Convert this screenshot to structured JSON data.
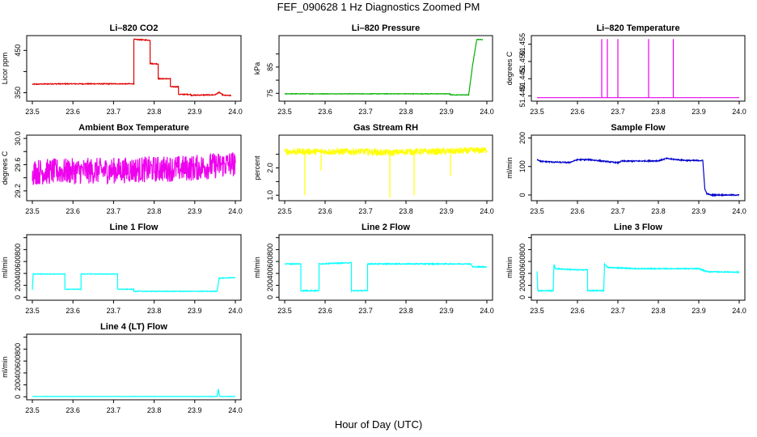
{
  "title": "FEF_090628  1 Hz Diagnostics Zoomed PM",
  "xlabel": "Hour of Day (UTC)",
  "colors": {
    "red": "#e00000",
    "green": "#00b000",
    "magenta": "#ee00ee",
    "yellow": "#ffff00",
    "blue": "#0000cc",
    "cyan": "#00ffff"
  },
  "chart_data": [
    {
      "type": "line",
      "title": "Li–820 CO2",
      "ylabel": "Licor ppm",
      "color": "red",
      "xlim": [
        23.5,
        24.0
      ],
      "ylim": [
        330,
        485
      ],
      "xticks": [
        23.5,
        23.6,
        23.7,
        23.8,
        23.9,
        24.0
      ],
      "yticks": [
        350,
        400,
        450
      ],
      "ytick_labels": [
        "350",
        "",
        "450"
      ],
      "series": [
        {
          "x": [
            23.5,
            23.55,
            23.6,
            23.65,
            23.7,
            23.75,
            23.75,
            23.79,
            23.79,
            23.81,
            23.81,
            23.84,
            23.84,
            23.86,
            23.86,
            23.89,
            23.89,
            23.95,
            23.96,
            23.97,
            23.99
          ],
          "y": [
            370,
            371,
            371,
            371,
            371,
            371,
            476,
            474,
            419,
            418,
            383,
            383,
            364,
            364,
            346,
            346,
            344,
            345,
            351,
            344,
            343
          ],
          "noise": 1
        }
      ]
    },
    {
      "type": "line",
      "title": "Li–820 Pressure",
      "ylabel": "kPa",
      "color": "green",
      "xlim": [
        23.5,
        24.0
      ],
      "ylim": [
        72,
        97
      ],
      "xticks": [
        23.5,
        23.6,
        23.7,
        23.8,
        23.9,
        24.0
      ],
      "yticks": [
        75,
        80,
        85,
        90
      ],
      "ytick_labels": [
        "75",
        "",
        "85",
        ""
      ],
      "series": [
        {
          "x": [
            23.5,
            23.7,
            23.91,
            23.91,
            23.955,
            23.965,
            23.975,
            23.99
          ],
          "y": [
            74.8,
            74.8,
            74.8,
            74.4,
            74.4,
            86,
            95.5,
            95.5
          ],
          "noise": 0.1
        }
      ]
    },
    {
      "type": "line",
      "title": "Li–820 Temperature",
      "ylabel": "degrees C",
      "color": "magenta",
      "xlim": [
        23.5,
        24.0
      ],
      "ylim": [
        51.4385,
        51.4575
      ],
      "xticks": [
        23.5,
        23.6,
        23.7,
        23.8,
        23.9,
        24.0
      ],
      "yticks": [
        51.44,
        51.445,
        51.45,
        51.455
      ],
      "ytick_labels": [
        "51.440",
        "51.445",
        "51.450",
        "51.455"
      ],
      "series": [
        {
          "x": [
            23.5,
            23.66,
            23.66,
            23.66,
            23.674,
            23.674,
            23.674,
            23.7,
            23.7,
            23.7,
            23.776,
            23.776,
            23.776,
            23.837,
            23.837,
            23.837,
            24.0
          ],
          "y": [
            51.4395,
            51.4395,
            51.4565,
            51.4395,
            51.4395,
            51.4565,
            51.4395,
            51.4395,
            51.4565,
            51.4395,
            51.4395,
            51.4565,
            51.4395,
            51.4395,
            51.4565,
            51.4395,
            51.4395
          ],
          "noise": 0
        }
      ]
    },
    {
      "type": "line",
      "title": "Ambient Box Temperature",
      "ylabel": "degrees C",
      "color": "magenta",
      "xlim": [
        23.5,
        24.0
      ],
      "ylim": [
        29.05,
        30.05
      ],
      "xticks": [
        23.5,
        23.6,
        23.7,
        23.8,
        23.9,
        24.0
      ],
      "yticks": [
        29.2,
        29.4,
        29.6,
        29.8,
        30.0
      ],
      "ytick_labels": [
        "29.2",
        "",
        "29.6",
        "",
        "30.0"
      ],
      "series": [
        {
          "x": [
            23.5,
            23.6,
            23.7,
            23.8,
            23.9,
            24.0
          ],
          "y": [
            29.49,
            29.5,
            29.51,
            29.53,
            29.55,
            29.62
          ],
          "noise": 0.2
        }
      ]
    },
    {
      "type": "line",
      "title": "Gas Stream RH",
      "ylabel": "percent",
      "color": "yellow",
      "xlim": [
        23.5,
        24.0
      ],
      "ylim": [
        0.8,
        3.2
      ],
      "xticks": [
        23.5,
        23.6,
        23.7,
        23.8,
        23.9,
        24.0
      ],
      "yticks": [
        1.0,
        1.5,
        2.0,
        2.5
      ],
      "ytick_labels": [
        "1.0",
        "",
        "2.0",
        ""
      ],
      "series": [
        {
          "x": [
            23.5,
            23.55,
            23.6,
            23.7,
            23.76,
            23.8,
            23.9,
            24.0
          ],
          "y": [
            2.6,
            2.6,
            2.6,
            2.6,
            2.55,
            2.6,
            2.6,
            2.65
          ],
          "noise": 0.12
        }
      ]
    },
    {
      "type": "line",
      "title": "Sample Flow",
      "ylabel": "ml/min",
      "color": "blue",
      "xlim": [
        23.5,
        24.0
      ],
      "ylim": [
        -20,
        210
      ],
      "xticks": [
        23.5,
        23.6,
        23.7,
        23.8,
        23.9,
        24.0
      ],
      "yticks": [
        0,
        100,
        200
      ],
      "ytick_labels": [
        "0",
        "100",
        "200"
      ],
      "series": [
        {
          "x": [
            23.5,
            23.51,
            23.55,
            23.58,
            23.6,
            23.63,
            23.7,
            23.71,
            23.75,
            23.8,
            23.82,
            23.84,
            23.87,
            23.91,
            23.915,
            23.92,
            23.93,
            24.0
          ],
          "y": [
            125,
            118,
            115,
            114,
            124,
            124,
            113,
            119,
            119,
            120,
            128,
            125,
            121,
            121,
            20,
            5,
            0,
            0
          ],
          "noise": 2
        }
      ]
    },
    {
      "type": "line",
      "title": "Line 1 Flow",
      "ylabel": "ml/min",
      "color": "cyan",
      "xlim": [
        23.5,
        24.0
      ],
      "ylim": [
        -50,
        1050
      ],
      "xticks": [
        23.5,
        23.6,
        23.7,
        23.8,
        23.9,
        24.0
      ],
      "yticks": [
        0,
        200,
        400,
        600,
        800,
        1000
      ],
      "ytick_labels": [
        "0",
        "200",
        "400",
        "600",
        "800",
        ""
      ],
      "series": [
        {
          "x": [
            23.5,
            23.502,
            23.58,
            23.58,
            23.62,
            23.62,
            23.71,
            23.71,
            23.75,
            23.75,
            23.955,
            23.96,
            24.0
          ],
          "y": [
            120,
            390,
            390,
            135,
            135,
            390,
            390,
            135,
            135,
            100,
            100,
            320,
            330
          ],
          "noise": 5
        }
      ]
    },
    {
      "type": "line",
      "title": "Line 2 Flow",
      "ylabel": "ml/min",
      "color": "cyan",
      "xlim": [
        23.5,
        24.0
      ],
      "ylim": [
        -50,
        1050
      ],
      "xticks": [
        23.5,
        23.6,
        23.7,
        23.8,
        23.9,
        24.0
      ],
      "yticks": [
        0,
        200,
        400,
        600,
        800,
        1000
      ],
      "ytick_labels": [
        "0",
        "200",
        "400",
        "600",
        "800",
        ""
      ],
      "series": [
        {
          "x": [
            23.5,
            23.54,
            23.54,
            23.585,
            23.585,
            23.665,
            23.665,
            23.705,
            23.705,
            23.96,
            23.965,
            24.0
          ],
          "y": [
            560,
            560,
            110,
            110,
            560,
            580,
            110,
            110,
            560,
            560,
            510,
            510
          ],
          "noise": 8
        }
      ]
    },
    {
      "type": "line",
      "title": "Line 3 Flow",
      "ylabel": "ml/min",
      "color": "cyan",
      "xlim": [
        23.5,
        24.0
      ],
      "ylim": [
        -50,
        1050
      ],
      "xticks": [
        23.5,
        23.6,
        23.7,
        23.8,
        23.9,
        24.0
      ],
      "yticks": [
        0,
        200,
        400,
        600,
        800,
        1000
      ],
      "ytick_labels": [
        "0",
        "200",
        "400",
        "600",
        "800",
        ""
      ],
      "series": [
        {
          "x": [
            23.5,
            23.502,
            23.505,
            23.54,
            23.542,
            23.545,
            23.6,
            23.625,
            23.625,
            23.665,
            23.667,
            23.675,
            23.75,
            23.9,
            23.92,
            24.0
          ],
          "y": [
            430,
            110,
            110,
            110,
            560,
            480,
            460,
            460,
            110,
            110,
            560,
            500,
            480,
            480,
            430,
            420
          ],
          "noise": 8
        }
      ]
    },
    {
      "type": "line",
      "title": "Line 4 (LT) Flow",
      "ylabel": "ml/min",
      "color": "cyan",
      "xlim": [
        23.5,
        24.0
      ],
      "ylim": [
        -50,
        1050
      ],
      "xticks": [
        23.5,
        23.6,
        23.7,
        23.8,
        23.9,
        24.0
      ],
      "yticks": [
        0,
        200,
        400,
        600,
        800,
        1000
      ],
      "ytick_labels": [
        "0",
        "200",
        "400",
        "600",
        "800",
        ""
      ],
      "series": [
        {
          "x": [
            23.5,
            23.955,
            23.958,
            23.96,
            23.962,
            24.0
          ],
          "y": [
            5,
            5,
            130,
            40,
            5,
            5
          ],
          "noise": 2
        }
      ]
    }
  ]
}
